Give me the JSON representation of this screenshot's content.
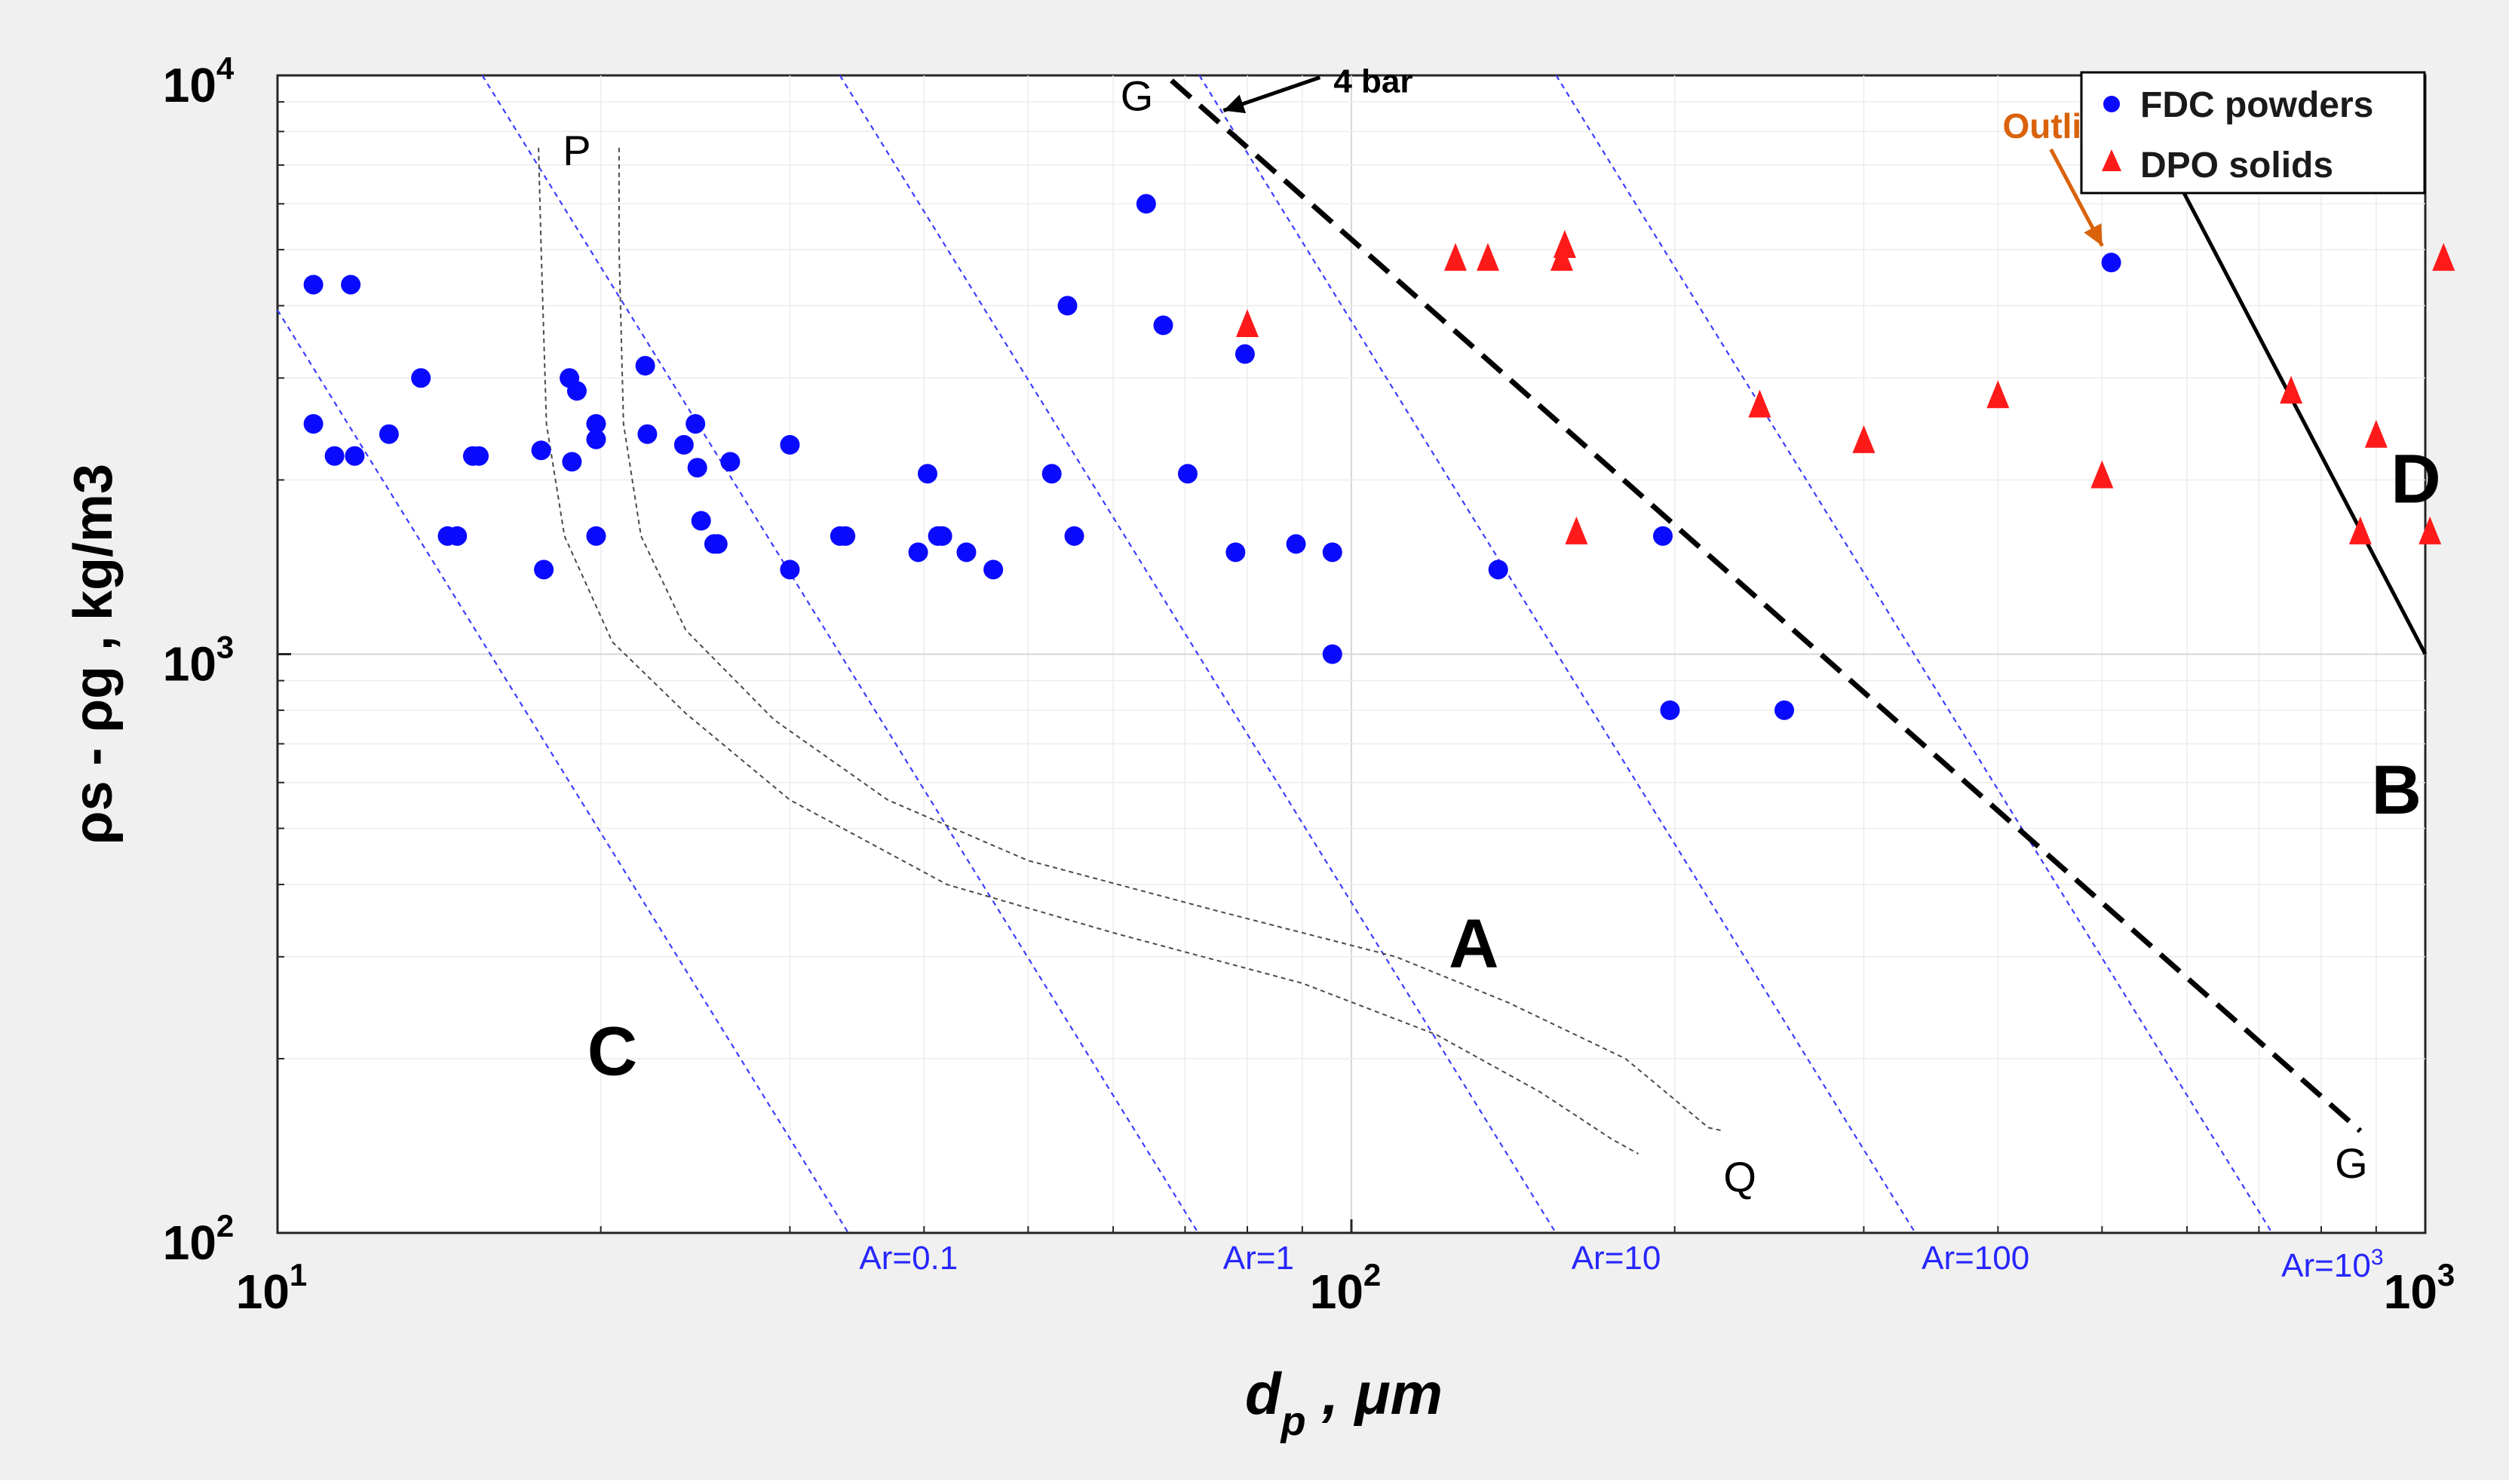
{
  "chart_data": {
    "type": "scatter",
    "scale": "log-log",
    "xlabel_main": "d",
    "xlabel_sub": "p",
    "xlabel_unit": " , μm",
    "ylabel": "ρs - ρg , kg/m3",
    "xlim": [
      10,
      1000
    ],
    "ylim": [
      100,
      10000
    ],
    "x_ticks": [
      {
        "value": 10,
        "base": "10",
        "exp": "1"
      },
      {
        "value": 100,
        "base": "10",
        "exp": "2"
      },
      {
        "value": 1000,
        "base": "10",
        "exp": "3"
      }
    ],
    "y_ticks": [
      {
        "value": 100,
        "base": "10",
        "exp": "2"
      },
      {
        "value": 1000,
        "base": "10",
        "exp": "3"
      },
      {
        "value": 10000,
        "base": "10",
        "exp": "4"
      }
    ],
    "grid": true,
    "legend": {
      "position": "top-right",
      "entries": [
        {
          "label": "FDC powders",
          "marker": "circle",
          "color": "#0a0aff"
        },
        {
          "label": "DPO solids",
          "marker": "triangle",
          "color": "#ff1a1a"
        }
      ]
    },
    "series": [
      {
        "name": "FDC powders",
        "marker": "circle",
        "color": "#0a0aff",
        "points": [
          [
            10.8,
            4350
          ],
          [
            11.7,
            4350
          ],
          [
            10.8,
            2500
          ],
          [
            11.3,
            2200
          ],
          [
            11.8,
            2200
          ],
          [
            12.7,
            2400
          ],
          [
            13.6,
            3000
          ],
          [
            14.4,
            1600
          ],
          [
            14.7,
            1600
          ],
          [
            15.2,
            2200
          ],
          [
            15.4,
            2200
          ],
          [
            17.7,
            1400
          ],
          [
            17.6,
            2250
          ],
          [
            18.7,
            3000
          ],
          [
            19.0,
            2850
          ],
          [
            18.8,
            2150
          ],
          [
            19.8,
            2500
          ],
          [
            19.8,
            2350
          ],
          [
            19.8,
            1600
          ],
          [
            22.0,
            3150
          ],
          [
            22.1,
            2400
          ],
          [
            23.9,
            2300
          ],
          [
            24.5,
            2500
          ],
          [
            24.6,
            2100
          ],
          [
            24.8,
            1700
          ],
          [
            25.5,
            1550
          ],
          [
            25.7,
            1550
          ],
          [
            26.4,
            2150
          ],
          [
            30.0,
            2300
          ],
          [
            30.0,
            1400
          ],
          [
            33.4,
            1600
          ],
          [
            33.8,
            1600
          ],
          [
            39.5,
            1500
          ],
          [
            40.3,
            2050
          ],
          [
            41.2,
            1600
          ],
          [
            41.6,
            1600
          ],
          [
            43.8,
            1500
          ],
          [
            46.4,
            1400
          ],
          [
            52.6,
            2050
          ],
          [
            54.4,
            4000
          ],
          [
            55.2,
            1600
          ],
          [
            64.4,
            6000
          ],
          [
            66.8,
            3700
          ],
          [
            70.4,
            2050
          ],
          [
            78.0,
            1500
          ],
          [
            79.6,
            3300
          ],
          [
            88.8,
            1550
          ],
          [
            96.0,
            1500
          ],
          [
            96.0,
            1000
          ],
          [
            137.0,
            1400
          ],
          [
            195.0,
            1600
          ],
          [
            198.0,
            800
          ],
          [
            253.0,
            800
          ],
          [
            510.0,
            4750
          ]
        ]
      },
      {
        "name": "DPO solids",
        "marker": "triangle",
        "color": "#ff1a1a",
        "points": [
          [
            80.0,
            3650
          ],
          [
            125.0,
            4750
          ],
          [
            134.0,
            4750
          ],
          [
            158.0,
            5000
          ],
          [
            157.0,
            4750
          ],
          [
            162.0,
            1600
          ],
          [
            240.0,
            2650
          ],
          [
            300.0,
            2300
          ],
          [
            400.0,
            2750
          ],
          [
            500.0,
            2000
          ],
          [
            750.0,
            2800
          ],
          [
            870.0,
            1600
          ],
          [
            900.0,
            2350
          ],
          [
            1010.0,
            1600
          ],
          [
            1040.0,
            4750
          ]
        ]
      }
    ],
    "archimedes_lines": [
      {
        "label": "Ar=0.1",
        "anchor_x": 34.0,
        "slope": -3,
        "text_ar": "Ar=0.1",
        "sup": ""
      },
      {
        "label": "Ar=1",
        "anchor_x": 72.0,
        "slope": -3,
        "text_ar": "Ar=1",
        "sup": ""
      },
      {
        "label": "Ar=10",
        "anchor_x": 155.0,
        "slope": -3,
        "text_ar": "Ar=10",
        "sup": ""
      },
      {
        "label": "Ar=100",
        "anchor_x": 335.0,
        "slope": -3,
        "text_ar": "Ar=100",
        "sup": ""
      },
      {
        "label": "Ar=10^3",
        "anchor_x": 720.0,
        "slope": -3,
        "text_ar": "Ar=10",
        "sup": "3"
      }
    ],
    "gg_line": {
      "from": [
        68.0,
        9800
      ],
      "to": [
        870.0,
        150
      ],
      "label_start": "G",
      "label_end": "G",
      "note": "4 bar"
    },
    "bd_line": {
      "from": [
        580.0,
        6900
      ],
      "to": [
        1000.0,
        1000
      ]
    },
    "region_labels": [
      "C",
      "A",
      "B",
      "D"
    ],
    "pq_curves": {
      "label_p": "P",
      "label_q": "Q"
    },
    "annotations": {
      "outlier": "Outlier",
      "four_bar": "4 bar"
    }
  }
}
